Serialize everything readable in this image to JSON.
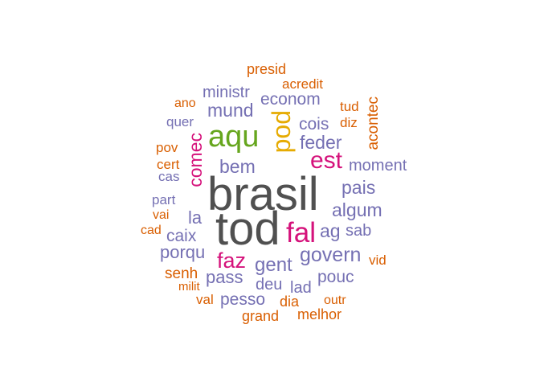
{
  "palette": {
    "orange": "#D95F02",
    "purple": "#7570B3",
    "magenta": "#D5127B",
    "green": "#66A61E",
    "gold": "#E6AB02",
    "gray": "#505050"
  },
  "words": [
    {
      "text": "presid",
      "color": "orange"
    },
    {
      "text": "acredit",
      "color": "orange"
    },
    {
      "text": "ministr",
      "color": "purple"
    },
    {
      "text": "ano",
      "color": "orange"
    },
    {
      "text": "mund",
      "color": "purple"
    },
    {
      "text": "econom",
      "color": "purple"
    },
    {
      "text": "tud",
      "color": "orange"
    },
    {
      "text": "acontec",
      "color": "orange"
    },
    {
      "text": "quer",
      "color": "purple"
    },
    {
      "text": "aqu",
      "color": "green"
    },
    {
      "text": "pod",
      "color": "gold"
    },
    {
      "text": "cois",
      "color": "purple"
    },
    {
      "text": "diz",
      "color": "orange"
    },
    {
      "text": "pov",
      "color": "orange"
    },
    {
      "text": "comec",
      "color": "magenta"
    },
    {
      "text": "feder",
      "color": "purple"
    },
    {
      "text": "cert",
      "color": "orange"
    },
    {
      "text": "bem",
      "color": "purple"
    },
    {
      "text": "est",
      "color": "magenta"
    },
    {
      "text": "moment",
      "color": "purple"
    },
    {
      "text": "cas",
      "color": "purple"
    },
    {
      "text": "brasil",
      "color": "gray"
    },
    {
      "text": "pais",
      "color": "purple"
    },
    {
      "text": "part",
      "color": "purple"
    },
    {
      "text": "algum",
      "color": "purple"
    },
    {
      "text": "vai",
      "color": "orange"
    },
    {
      "text": "la",
      "color": "purple"
    },
    {
      "text": "tod",
      "color": "gray"
    },
    {
      "text": "cad",
      "color": "orange"
    },
    {
      "text": "caix",
      "color": "purple"
    },
    {
      "text": "fal",
      "color": "magenta"
    },
    {
      "text": "ag",
      "color": "purple"
    },
    {
      "text": "sab",
      "color": "purple"
    },
    {
      "text": "porqu",
      "color": "purple"
    },
    {
      "text": "govern",
      "color": "purple"
    },
    {
      "text": "faz",
      "color": "magenta"
    },
    {
      "text": "vid",
      "color": "orange"
    },
    {
      "text": "gent",
      "color": "purple"
    },
    {
      "text": "senh",
      "color": "orange"
    },
    {
      "text": "pass",
      "color": "purple"
    },
    {
      "text": "pouc",
      "color": "purple"
    },
    {
      "text": "milit",
      "color": "orange"
    },
    {
      "text": "deu",
      "color": "purple"
    },
    {
      "text": "lad",
      "color": "purple"
    },
    {
      "text": "val",
      "color": "orange"
    },
    {
      "text": "pesso",
      "color": "purple"
    },
    {
      "text": "dia",
      "color": "orange"
    },
    {
      "text": "outr",
      "color": "orange"
    },
    {
      "text": "grand",
      "color": "orange"
    },
    {
      "text": "melhor",
      "color": "orange"
    }
  ]
}
